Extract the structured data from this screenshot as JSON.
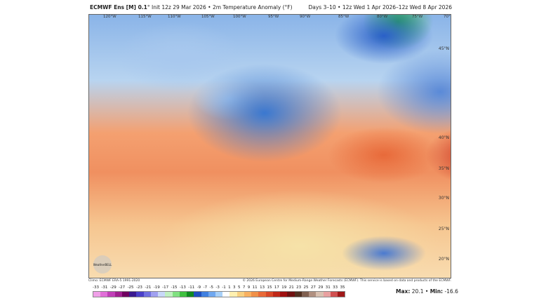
{
  "header": {
    "model": "ECMWF Ens [M] 0.1",
    "init": "° Init 12z 29 Mar 2026 • 2m Temperature Anomaly (°F)",
    "valid": "Days 3–10 • 12z Wed 1 Apr 2026–12z Wed 8 Apr 2026"
  },
  "map": {
    "longitudes": [
      "120°W",
      "115°W",
      "110°W",
      "105°W",
      "100°W",
      "95°W",
      "90°W",
      "85°W",
      "80°W",
      "75°W",
      "70°W"
    ],
    "latitudes": [
      "45°N",
      "40°N",
      "35°N",
      "30°N",
      "25°N",
      "20°N"
    ],
    "logo": "WeatherBELL"
  },
  "footer": {
    "climo": "Climo: ECMWF ERA-5 1991-2020",
    "credit": "© 2026 European Centre for Medium-Range Weather Forecasts (ECMWF). This service is based on data and products of the ECMWF."
  },
  "legend": {
    "ticks": [
      "-33",
      "-31",
      "-29",
      "-27",
      "-25",
      "-23",
      "-21",
      "-19",
      "-17",
      "-15",
      "-13",
      "-11",
      "-9",
      "-7",
      "-5",
      "-3",
      "-1",
      "1",
      "3",
      "5",
      "7",
      "9",
      "11",
      "13",
      "15",
      "17",
      "19",
      "21",
      "23",
      "25",
      "27",
      "29",
      "31",
      "33",
      "35"
    ],
    "colors": [
      "#f0a0e8",
      "#e070d8",
      "#c040b8",
      "#a02090",
      "#700060",
      "#3a1a90",
      "#4a40c8",
      "#7070e0",
      "#a0a0f0",
      "#c8d8f8",
      "#c0f0c0",
      "#80e080",
      "#40c040",
      "#108a20",
      "#2050c0",
      "#4080e0",
      "#70a8f0",
      "#a8d0f8",
      "#ffffff",
      "#fff0b0",
      "#f8d080",
      "#f8b060",
      "#f09048",
      "#e86a38",
      "#d84828",
      "#c02818",
      "#a01010",
      "#701010",
      "#503020",
      "#806050",
      "#b09080",
      "#d8c0b0",
      "#e8a0a0",
      "#d05050",
      "#a01818"
    ]
  },
  "stats": {
    "max_label": "Max:",
    "max": "20.1",
    "sep": "•",
    "min_label": "Min:",
    "min": "-16.6"
  }
}
